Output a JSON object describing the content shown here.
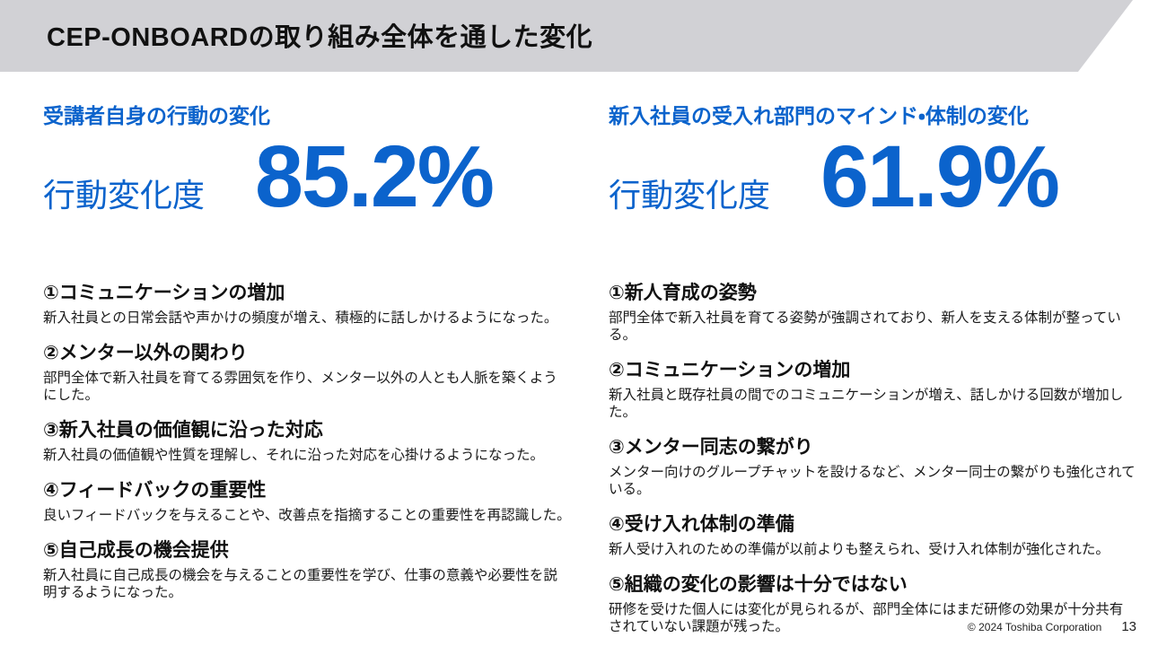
{
  "slide": {
    "title": "CEP-ONBOARDの取り組み全体を通した変化"
  },
  "colors": {
    "accent_blue": "#0b63cc",
    "band_gray": "#d1d1d5"
  },
  "left_panel": {
    "heading": "受講者自身の行動の変化",
    "stat_label": "行動変化度",
    "stat_value": "85.2%",
    "items": [
      {
        "heading": "①コミュニケーションの増加",
        "body": "新入社員との日常会話や声かけの頻度が増え、積極的に話しかけるようになった。"
      },
      {
        "heading": "②メンター以外の関わり",
        "body": " 部門全体で新入社員を育てる雰囲気を作り、メンター以外の人とも人脈を築くようにした。"
      },
      {
        "heading": "③新入社員の価値観に沿った対応",
        "body": "新入社員の価値観や性質を理解し、それに沿った対応を心掛けるようになった。"
      },
      {
        "heading": "④フィードバックの重要性",
        "body": "良いフィードバックを与えることや、改善点を指摘することの重要性を再認識した。"
      },
      {
        "heading": "⑤自己成長の機会提供",
        "body": "新入社員に自己成長の機会を与えることの重要性を学び、仕事の意義や必要性を説明するようになった。"
      }
    ]
  },
  "right_panel": {
    "heading": "新入社員の受入れ部門のマインド・体制の変化",
    "stat_label": "行動変化度",
    "stat_value": "61.9%",
    "items": [
      {
        "heading": "①新人育成の姿勢",
        "body": "部門全体で新入社員を育てる姿勢が強調されており、新人を支える体制が整っている。"
      },
      {
        "heading": "②コミュニケーションの増加",
        "body": "新入社員と既存社員の間でのコミュニケーションが増え、話しかける回数が増加した。"
      },
      {
        "heading": "③メンター同志の繋がり",
        "body": "メンター向けのグループチャットを設けるなど、メンター同士の繋がりも強化されている。"
      },
      {
        "heading": "④受け入れ体制の準備",
        "body": "新人受け入れのための準備が以前よりも整えられ、受け入れ体制が強化された。"
      },
      {
        "heading": "⑤組織の変化の影響は十分ではない",
        "body": "研修を受けた個人には変化が見られるが、部門全体にはまだ研修の効果が十分共有されていない課題が残った。"
      }
    ]
  },
  "footer": {
    "copyright": "© 2024 Toshiba Corporation",
    "page_number": "13"
  }
}
